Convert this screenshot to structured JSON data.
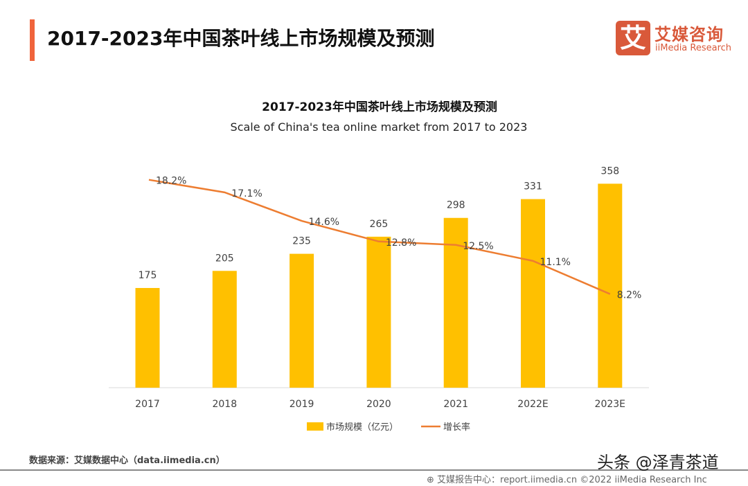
{
  "header": {
    "title": "2017-2023年中国茶叶线上市场规模及预测"
  },
  "logo": {
    "mark": "艾",
    "cn": "艾媒咨询",
    "en": "iiMedia Research",
    "color": "#d9593a"
  },
  "chart_data": {
    "type": "bar+line",
    "title": "2017-2023年中国茶叶线上市场规模及预测",
    "subtitle": "Scale of China's tea online market from 2017 to 2023",
    "categories": [
      "2017",
      "2018",
      "2019",
      "2020",
      "2021",
      "2022E",
      "2023E"
    ],
    "series": [
      {
        "name": "市场规模（亿元）",
        "type": "bar",
        "color": "#ffc000",
        "values": [
          175,
          205,
          235,
          265,
          298,
          331,
          358
        ],
        "labels": [
          "175",
          "205",
          "235",
          "265",
          "298",
          "331",
          "358"
        ]
      },
      {
        "name": "增长率",
        "type": "line",
        "color": "#ed7d31",
        "values": [
          18.2,
          17.1,
          14.6,
          12.8,
          12.5,
          11.1,
          8.2
        ],
        "labels": [
          "18.2%",
          "17.1%",
          "14.6%",
          "12.8%",
          "12.5%",
          "11.1%",
          "8.2%"
        ]
      }
    ],
    "legend": "bottom",
    "grid": false
  },
  "footer": {
    "source": "数据来源：艾媒数据中心（data.iimedia.cn）",
    "report": "艾媒报告中心：report.iimedia.cn  ©2022  iiMedia Research  Inc",
    "watermark": "头条 @泽青茶道"
  }
}
